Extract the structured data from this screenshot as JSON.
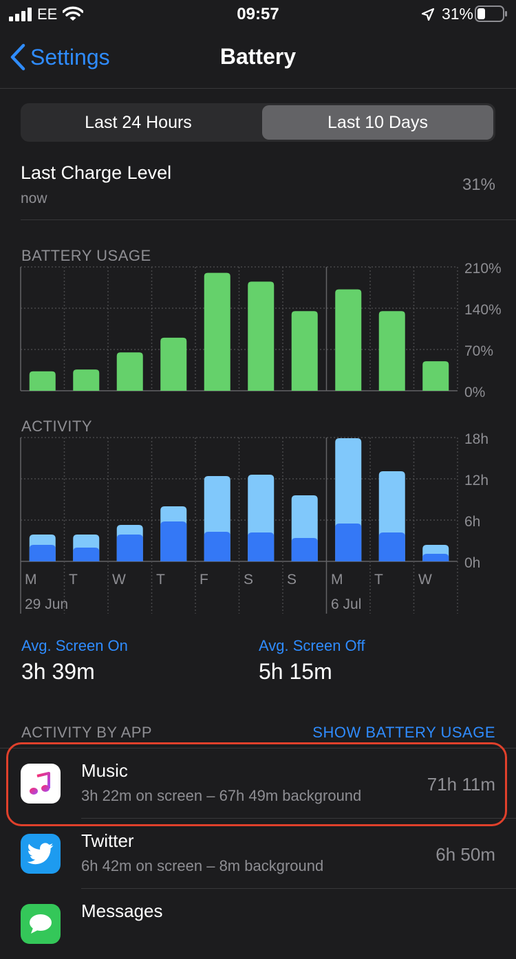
{
  "status_bar": {
    "carrier": "EE",
    "time": "09:57",
    "battery_percent": "31%",
    "icons": [
      "signal-icon",
      "wifi-icon",
      "location-icon",
      "battery-icon"
    ]
  },
  "nav": {
    "back_label": "Settings",
    "title": "Battery"
  },
  "segmented": {
    "options": [
      "Last 24 Hours",
      "Last 10 Days"
    ],
    "selected": "Last 10 Days"
  },
  "last_charge": {
    "title": "Last Charge Level",
    "subtitle": "now",
    "value": "31%"
  },
  "battery_usage": {
    "label": "BATTERY USAGE",
    "y_ticks": [
      "210%",
      "140%",
      "70%",
      "0%"
    ]
  },
  "activity": {
    "label": "ACTIVITY",
    "y_ticks": [
      "18h",
      "12h",
      "6h",
      "0h"
    ],
    "day_labels": [
      "M",
      "T",
      "W",
      "T",
      "F",
      "S",
      "S",
      "M",
      "T",
      "W"
    ],
    "date_labels": [
      "29 Jun",
      "6 Jul"
    ]
  },
  "chart_data": [
    {
      "type": "bar",
      "title": "BATTERY USAGE",
      "categories": [
        "M",
        "T",
        "W",
        "T",
        "F",
        "S",
        "S",
        "M",
        "T",
        "W"
      ],
      "values": [
        33,
        36,
        65,
        90,
        200,
        185,
        135,
        172,
        135,
        50
      ],
      "ylim": [
        0,
        210
      ],
      "y_ticks": [
        "210%",
        "140%",
        "70%",
        "0%"
      ],
      "grid": true,
      "colors": {
        "bar": "#65d16b"
      }
    },
    {
      "type": "bar",
      "title": "ACTIVITY",
      "categories": [
        "M",
        "T",
        "W",
        "T",
        "F",
        "S",
        "S",
        "M",
        "T",
        "W"
      ],
      "series": [
        {
          "values": [
            2.4,
            2.0,
            3.9,
            5.8,
            4.3,
            4.2,
            3.4,
            5.5,
            4.2,
            1.1
          ]
        },
        {
          "values": [
            1.5,
            1.9,
            1.4,
            2.2,
            8.1,
            8.4,
            6.2,
            12.4,
            8.9,
            1.3
          ]
        }
      ],
      "stacked": true,
      "ylim": [
        0,
        18
      ],
      "y_ticks": [
        "18h",
        "12h",
        "6h",
        "0h"
      ],
      "grid": true,
      "colors": {
        "screen_on": "#3478f6",
        "screen_off": "#80c8fb"
      }
    }
  ],
  "averages": {
    "screen_on_label": "Avg. Screen On",
    "screen_on_value": "3h 39m",
    "screen_off_label": "Avg. Screen Off",
    "screen_off_value": "5h 15m"
  },
  "activity_by_app": {
    "label": "ACTIVITY BY APP",
    "toggle_label": "SHOW BATTERY USAGE",
    "apps": [
      {
        "name": "Music",
        "detail": "3h 22m on screen – 67h 49m background",
        "time": "71h 11m",
        "icon": "music-icon"
      },
      {
        "name": "Twitter",
        "detail": "6h 42m on screen – 8m background",
        "time": "6h 50m",
        "icon": "twitter-icon"
      },
      {
        "name": "Messages",
        "detail": "",
        "time": "",
        "icon": "messages-icon"
      }
    ]
  },
  "colors": {
    "accent": "#2f8cff",
    "highlight": "#e0402b"
  }
}
